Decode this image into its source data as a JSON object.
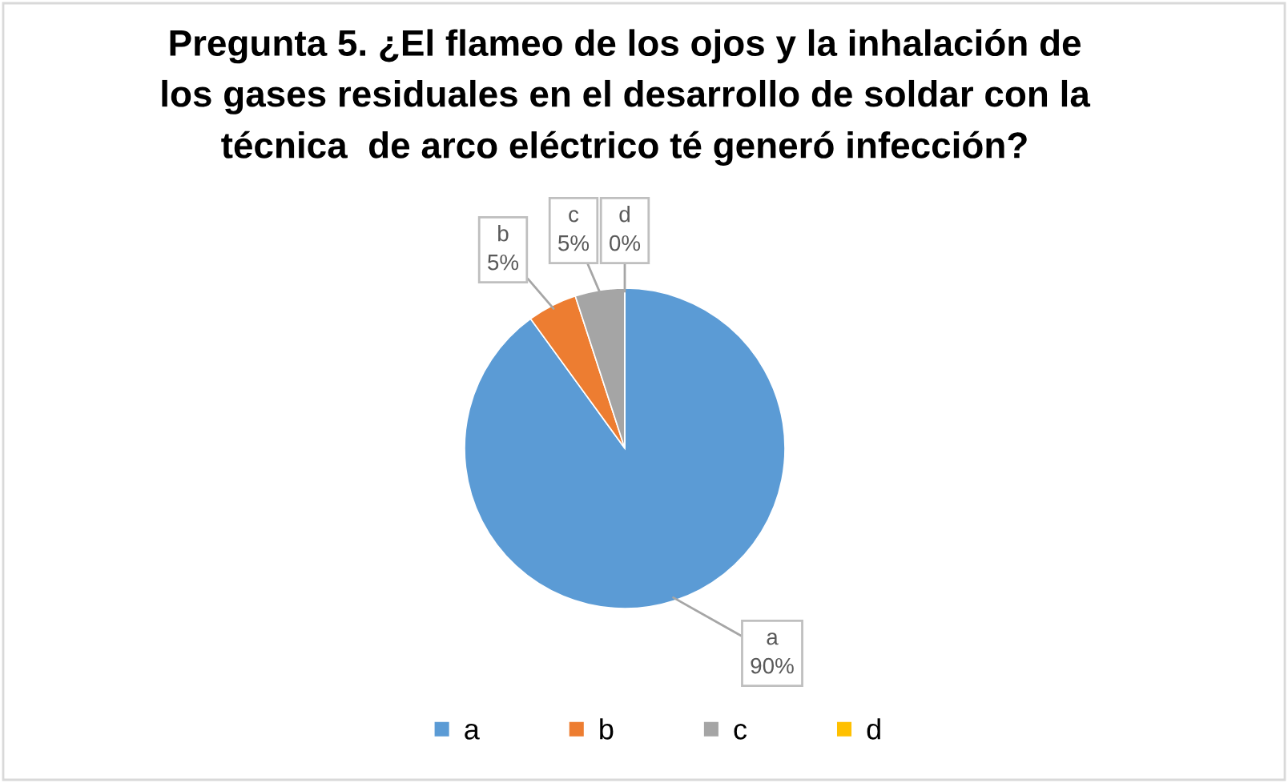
{
  "chart_data": {
    "type": "pie",
    "title": "Pregunta 5. ¿El flameo de los ojos y la inhalación de\nlos gases residuales en el desarrollo de soldar con la\ntécnica  de arco eléctrico té generó infección?",
    "categories": [
      "a",
      "b",
      "c",
      "d"
    ],
    "values": [
      90,
      5,
      5,
      0
    ],
    "colors": [
      "#5b9bd5",
      "#ed7d31",
      "#a5a5a5",
      "#ffc000"
    ],
    "value_labels": [
      "90%",
      "5%",
      "5%",
      "0%"
    ],
    "legend": "bottom"
  }
}
